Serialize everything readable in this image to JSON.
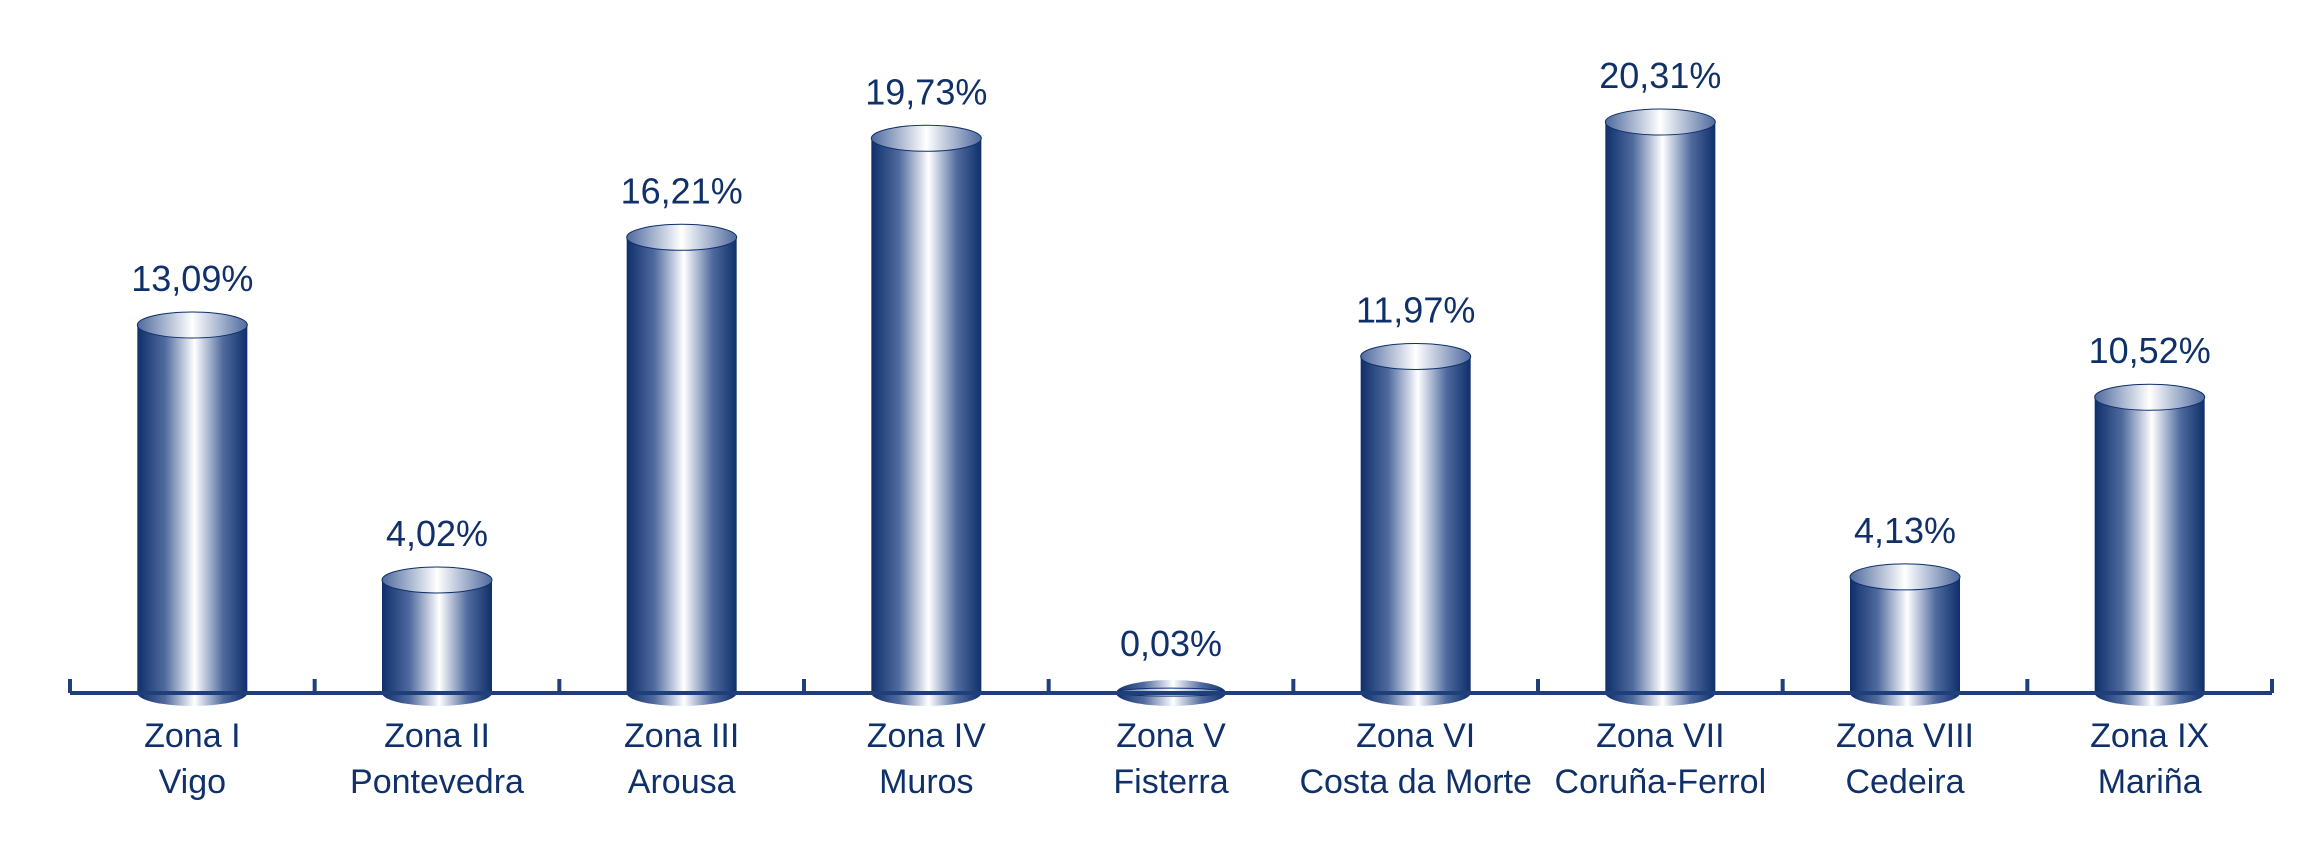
{
  "chart_data": {
    "type": "bar",
    "style": "3d-cylinder",
    "categories": [
      {
        "line1": "Zona I",
        "line2": "Vigo"
      },
      {
        "line1": "Zona II",
        "line2": "Pontevedra"
      },
      {
        "line1": "Zona III",
        "line2": "Arousa"
      },
      {
        "line1": "Zona IV",
        "line2": "Muros"
      },
      {
        "line1": "Zona V",
        "line2": "Fisterra"
      },
      {
        "line1": "Zona VI",
        "line2": "Costa da Morte"
      },
      {
        "line1": "Zona VII",
        "line2": "Coruña-Ferrol"
      },
      {
        "line1": "Zona VIII",
        "line2": "Cedeira"
      },
      {
        "line1": "Zona IX",
        "line2": "Mariña"
      }
    ],
    "values": [
      13.09,
      4.02,
      16.21,
      19.73,
      0.03,
      11.97,
      20.31,
      4.13,
      10.52
    ],
    "value_labels": [
      "13,09%",
      "4,02%",
      "16,21%",
      "19,73%",
      "0,03%",
      "11,97%",
      "20,31%",
      "4,13%",
      "10,52%"
    ],
    "ylim": [
      0,
      20.31
    ],
    "grid": false,
    "colors": {
      "bar_dark": "#0f2f6a",
      "bar_mid": "#4f6a9e",
      "bar_light": "#ffffff",
      "text": "#10306a",
      "axis": "#1f3f7a"
    }
  }
}
